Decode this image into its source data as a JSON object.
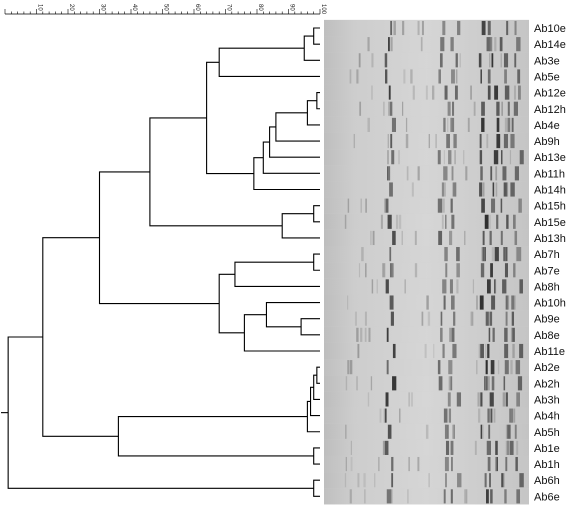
{
  "scale": {
    "ticks": [
      10,
      20,
      30,
      40,
      50,
      60,
      70,
      80,
      90,
      100
    ]
  },
  "samples": [
    "Ab10e",
    "Ab14e",
    "Ab3e",
    "Ab5e",
    "Ab12e",
    "Ab12h",
    "Ab4e",
    "Ab9h",
    "Ab13e",
    "Ab11h",
    "Ab14h",
    "Ab15h",
    "Ab15e",
    "Ab13h",
    "Ab7h",
    "Ab7e",
    "Ab8h",
    "Ab10h",
    "Ab9e",
    "Ab8e",
    "Ab11e",
    "Ab2e",
    "Ab2h",
    "Ab3h",
    "Ab4h",
    "Ab5h",
    "Ab1e",
    "Ab1h",
    "Ab6h",
    "Ab6e"
  ],
  "dendrogram": {
    "merges": [
      {
        "a": 0,
        "b": 1,
        "similarity": 98
      },
      {
        "a": 4,
        "b": 5,
        "similarity": 99
      },
      {
        "a": 11,
        "b": 12,
        "similarity": 98
      },
      {
        "a": 14,
        "b": 15,
        "similarity": 98
      },
      {
        "a": 21,
        "b": 22,
        "similarity": 99
      },
      {
        "a": 26,
        "b": 27,
        "similarity": 98
      },
      {
        "a": 28,
        "b": 29,
        "similarity": 98
      },
      {
        "a": "n5",
        "b": 23,
        "similarity": 98
      },
      {
        "a": "n8",
        "b": 24,
        "similarity": 97
      },
      {
        "a": "n9",
        "b": 25,
        "similarity": 96
      },
      {
        "a": "n2",
        "b": 6,
        "similarity": 96
      },
      {
        "a": "n11",
        "b": 7,
        "similarity": 86
      },
      {
        "a": "n12",
        "b": 8,
        "similarity": 84
      },
      {
        "a": "n13",
        "b": 9,
        "similarity": 82
      },
      {
        "a": "n14",
        "b": 10,
        "similarity": 79
      },
      {
        "a": "n1",
        "b": 2,
        "similarity": 95
      },
      {
        "a": "n16",
        "b": 3,
        "similarity": 68
      },
      {
        "a": "n17",
        "b": "n15",
        "similarity": 64
      },
      {
        "a": "n3",
        "b": 13,
        "similarity": 88
      },
      {
        "a": "n18",
        "b": "n19",
        "similarity": 46
      },
      {
        "a": 18,
        "b": 19,
        "similarity": 94
      },
      {
        "a": 17,
        "b": "n21",
        "similarity": 83
      },
      {
        "a": "n22",
        "b": 20,
        "similarity": 76
      },
      {
        "a": 16,
        "b": "n4",
        "similarity": 73
      },
      {
        "a": "n24",
        "b": "n23",
        "similarity": 68
      },
      {
        "a": "n20",
        "b": "n25",
        "similarity": 30
      },
      {
        "a": "n10",
        "b": "n6",
        "similarity": 36
      },
      {
        "a": "n26",
        "b": "n27",
        "similarity": 12
      },
      {
        "a": "n28",
        "b": "n7",
        "similarity": 1
      }
    ]
  },
  "gel": {
    "background": "#cfcfcf",
    "bands": [
      {
        "pos": 0.32,
        "strength": 0.85
      },
      {
        "pos": 0.58,
        "strength": 0.55
      },
      {
        "pos": 0.63,
        "strength": 0.5
      },
      {
        "pos": 0.78,
        "strength": 0.9
      },
      {
        "pos": 0.82,
        "strength": 0.85
      },
      {
        "pos": 0.88,
        "strength": 0.7
      },
      {
        "pos": 0.93,
        "strength": 0.6
      }
    ]
  }
}
